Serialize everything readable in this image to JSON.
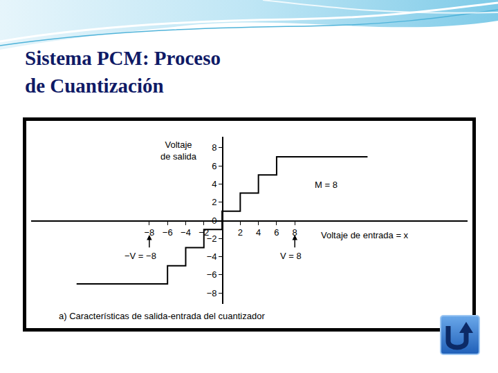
{
  "slide_title": "Sistema PCM: Proceso\nde Cuantización",
  "chart_data": {
    "type": "line",
    "line_style": "step",
    "title": "a) Características de salida-entrada del cuantizador",
    "xlabel": "Voltaje de entrada = x",
    "ylabel": "Voltaje\nde salida",
    "x": [
      -16,
      -6,
      -4,
      -2,
      0,
      2,
      4,
      6,
      16
    ],
    "values": [
      -7,
      -5,
      -3,
      -1,
      1,
      3,
      5,
      7,
      7
    ],
    "color": "#000000",
    "xlim": [
      -21,
      27
    ],
    "ylim": [
      -9.2,
      9.2
    ],
    "xticks": [
      -8,
      -6,
      -4,
      -2,
      2,
      4,
      6,
      8
    ],
    "yticks": [
      -8,
      -6,
      -4,
      -2,
      0,
      2,
      4,
      6,
      8
    ],
    "grid": false,
    "annotations": [
      {
        "text": "M = 8"
      },
      {
        "text": "−V = −8",
        "x": -8
      },
      {
        "text": "V = 8",
        "x": 8
      }
    ]
  }
}
